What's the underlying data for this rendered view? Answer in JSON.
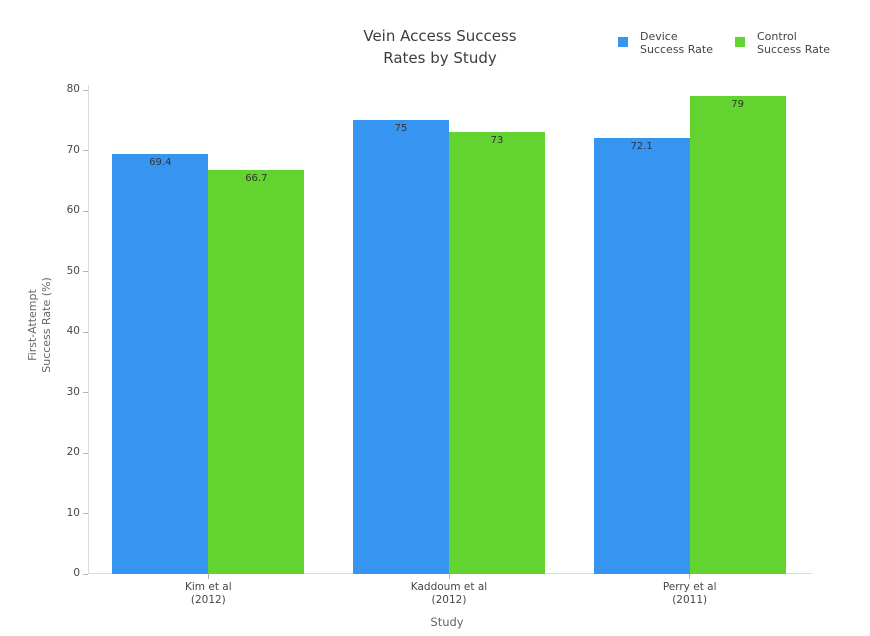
{
  "chart": {
    "title": "Vein Access Success Rates by Study",
    "title_lines": [
      "Vein Access Success",
      "Rates by Study"
    ]
  },
  "legend": {
    "position": "top-right",
    "items": [
      {
        "name": "Device Success Rate",
        "label_line1": "Device",
        "label_line2": "Success Rate",
        "color": "#3795f2"
      },
      {
        "name": "Control Success Rate",
        "label_line1": "Control",
        "label_line2": "Success Rate",
        "color": "#63d32f"
      }
    ]
  },
  "chart_data": {
    "type": "bar",
    "title": "Vein Access Success Rates by Study",
    "categories": [
      "Kim et al (2012)",
      "Kaddoum et al (2012)",
      "Perry et al (2011)"
    ],
    "categories_lines": [
      [
        "Kim et al",
        "(2012)"
      ],
      [
        "Kaddoum et al",
        "(2012)"
      ],
      [
        "Perry et al",
        "(2011)"
      ]
    ],
    "series": [
      {
        "name": "Device Success Rate",
        "color": "#3795f2",
        "values": [
          69.4,
          75,
          72.1
        ]
      },
      {
        "name": "Control Success Rate",
        "color": "#63d32f",
        "values": [
          66.7,
          73,
          79
        ]
      }
    ],
    "xlabel": "Study",
    "ylabel": "First-Attempt Success Rate (%)",
    "ylabel_lines": [
      "First-Attempt",
      "Success Rate (%)"
    ],
    "ylim": [
      0,
      80
    ],
    "yticks": [
      0,
      10,
      20,
      30,
      40,
      50,
      60,
      70,
      80
    ],
    "grid": false,
    "bar_labels": "inside-top",
    "legend_position": "top-right"
  }
}
